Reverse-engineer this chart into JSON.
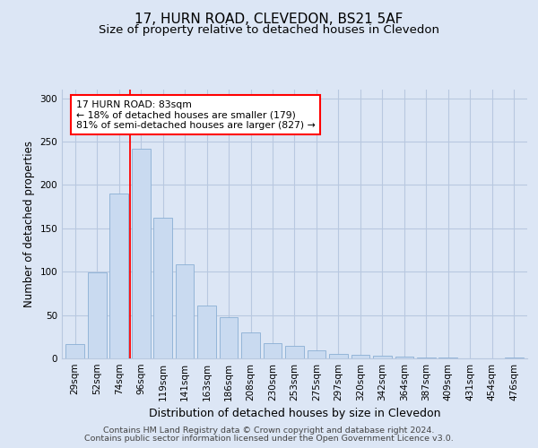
{
  "title": "17, HURN ROAD, CLEVEDON, BS21 5AF",
  "subtitle": "Size of property relative to detached houses in Clevedon",
  "xlabel": "Distribution of detached houses by size in Clevedon",
  "ylabel": "Number of detached properties",
  "footer_line1": "Contains HM Land Registry data © Crown copyright and database right 2024.",
  "footer_line2": "Contains public sector information licensed under the Open Government Licence v3.0.",
  "bin_labels": [
    "29sqm",
    "52sqm",
    "74sqm",
    "96sqm",
    "119sqm",
    "141sqm",
    "163sqm",
    "186sqm",
    "208sqm",
    "230sqm",
    "253sqm",
    "275sqm",
    "297sqm",
    "320sqm",
    "342sqm",
    "364sqm",
    "387sqm",
    "409sqm",
    "431sqm",
    "454sqm",
    "476sqm"
  ],
  "bar_values": [
    17,
    99,
    190,
    242,
    162,
    109,
    61,
    48,
    30,
    18,
    14,
    9,
    5,
    4,
    3,
    2,
    1,
    1,
    0,
    0,
    1
  ],
  "bar_color": "#c9daf0",
  "bar_edge_color": "#8aafd4",
  "vline_x": 2.5,
  "annotation_text": "17 HURN ROAD: 83sqm\n← 18% of detached houses are smaller (179)\n81% of semi-detached houses are larger (827) →",
  "annotation_box_color": "white",
  "annotation_box_edge_color": "red",
  "vline_color": "red",
  "ylim": [
    0,
    310
  ],
  "yticks": [
    0,
    50,
    100,
    150,
    200,
    250,
    300
  ],
  "background_color": "#dce6f5",
  "plot_background": "#dce6f5",
  "grid_color": "#b8c8e0",
  "title_fontsize": 11,
  "subtitle_fontsize": 9.5,
  "xlabel_fontsize": 9,
  "ylabel_fontsize": 8.5,
  "tick_fontsize": 7.5,
  "footer_fontsize": 6.8,
  "annotation_fontsize": 7.8
}
